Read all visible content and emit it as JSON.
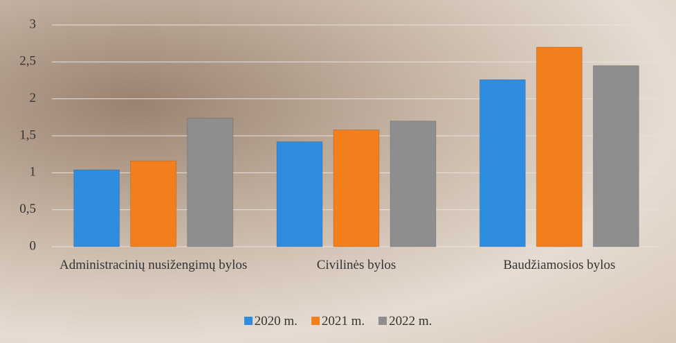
{
  "chart_data": {
    "type": "bar",
    "categories": [
      "Administracinių nusižengimų bylos",
      "Civilinės bylos",
      "Baudžiamosios bylos"
    ],
    "series": [
      {
        "name": "2020 m.",
        "color": "#2f8ddf",
        "values": [
          1.04,
          1.42,
          2.26
        ]
      },
      {
        "name": "2021 m.",
        "color": "#f27e1c",
        "values": [
          1.16,
          1.58,
          2.7
        ]
      },
      {
        "name": "2022 m.",
        "color": "#8e8e8e",
        "values": [
          1.74,
          1.7,
          2.45
        ]
      }
    ],
    "ylim": [
      0,
      3
    ],
    "yticks": [
      0,
      {
        "value": 0.5,
        "label": "0,5"
      },
      1,
      {
        "value": 1.5,
        "label": "1,5"
      },
      2,
      {
        "value": 2.5,
        "label": "2,5"
      },
      3
    ],
    "grid": true,
    "legend": "bottom"
  }
}
